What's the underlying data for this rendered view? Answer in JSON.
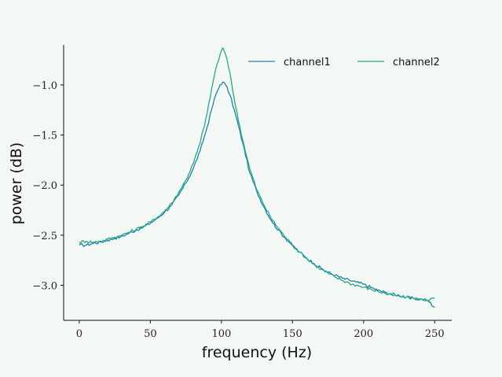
{
  "chart_data": {
    "type": "line",
    "title": "",
    "xlabel": "frequency (Hz)",
    "ylabel": "power (dB)",
    "xlim": [
      -11,
      262
    ],
    "ylim": [
      -3.35,
      -0.6
    ],
    "xticks": [
      0,
      50,
      100,
      150,
      200,
      250
    ],
    "xtick_labels": [
      "0",
      "50",
      "100",
      "150",
      "200",
      "250"
    ],
    "yticks": [
      -3.0,
      -2.5,
      -2.0,
      -1.5,
      -1.0
    ],
    "ytick_labels": [
      "−3.0",
      "−2.5",
      "−2.0",
      "−1.5",
      "−1.0"
    ],
    "grid": false,
    "legend": {
      "position": "top-right",
      "columns": 2
    },
    "series": [
      {
        "name": "channel1",
        "color": "#1f7fb0",
        "x": [
          0,
          5,
          10,
          15,
          20,
          25,
          30,
          35,
          40,
          45,
          50,
          55,
          60,
          65,
          70,
          75,
          80,
          85,
          90,
          93,
          96,
          99,
          101,
          103,
          106,
          110,
          115,
          120,
          125,
          130,
          135,
          140,
          145,
          150,
          155,
          160,
          165,
          170,
          175,
          180,
          185,
          190,
          195,
          200,
          205,
          210,
          215,
          220,
          225,
          230,
          235,
          240,
          245,
          250
        ],
        "y": [
          -2.6,
          -2.6,
          -2.58,
          -2.57,
          -2.55,
          -2.53,
          -2.51,
          -2.48,
          -2.45,
          -2.42,
          -2.38,
          -2.33,
          -2.27,
          -2.2,
          -2.1,
          -1.98,
          -1.84,
          -1.66,
          -1.42,
          -1.25,
          -1.1,
          -1.0,
          -0.97,
          -1.0,
          -1.1,
          -1.3,
          -1.58,
          -1.88,
          -2.07,
          -2.22,
          -2.35,
          -2.45,
          -2.53,
          -2.6,
          -2.67,
          -2.73,
          -2.78,
          -2.83,
          -2.87,
          -2.9,
          -2.93,
          -2.95,
          -2.97,
          -2.99,
          -3.02,
          -3.05,
          -3.07,
          -3.09,
          -3.1,
          -3.12,
          -3.13,
          -3.14,
          -3.15,
          -3.22
        ]
      },
      {
        "name": "channel2",
        "color": "#26a883",
        "x": [
          0,
          5,
          10,
          15,
          20,
          25,
          30,
          35,
          40,
          45,
          50,
          55,
          60,
          65,
          70,
          75,
          80,
          85,
          90,
          93,
          96,
          99,
          101,
          103,
          106,
          110,
          115,
          120,
          125,
          130,
          135,
          140,
          145,
          150,
          155,
          160,
          165,
          170,
          175,
          180,
          185,
          190,
          195,
          200,
          205,
          210,
          215,
          220,
          225,
          230,
          235,
          240,
          245,
          250
        ],
        "y": [
          -2.57,
          -2.56,
          -2.57,
          -2.56,
          -2.54,
          -2.52,
          -2.5,
          -2.47,
          -2.44,
          -2.41,
          -2.37,
          -2.32,
          -2.26,
          -2.18,
          -2.07,
          -1.95,
          -1.79,
          -1.58,
          -1.28,
          -1.05,
          -0.84,
          -0.7,
          -0.63,
          -0.7,
          -0.88,
          -1.22,
          -1.55,
          -1.84,
          -2.05,
          -2.2,
          -2.33,
          -2.43,
          -2.52,
          -2.6,
          -2.67,
          -2.73,
          -2.79,
          -2.84,
          -2.88,
          -2.92,
          -2.95,
          -2.98,
          -3.0,
          -3.02,
          -3.04,
          -3.06,
          -3.08,
          -3.1,
          -3.11,
          -3.12,
          -3.13,
          -3.14,
          -3.15,
          -3.13
        ]
      }
    ]
  }
}
